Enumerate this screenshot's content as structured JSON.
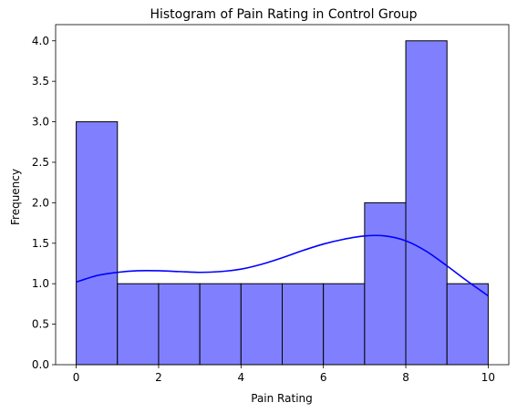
{
  "chart_data": {
    "type": "bar",
    "title": "Histogram of Pain Rating in Control Group",
    "xlabel": "Pain Rating",
    "ylabel": "Frequency",
    "bins": [
      {
        "start": 0,
        "end": 1,
        "count": 3
      },
      {
        "start": 1,
        "end": 2,
        "count": 1
      },
      {
        "start": 2,
        "end": 3,
        "count": 1
      },
      {
        "start": 3,
        "end": 4,
        "count": 1
      },
      {
        "start": 4,
        "end": 5,
        "count": 1
      },
      {
        "start": 5,
        "end": 6,
        "count": 1
      },
      {
        "start": 6,
        "end": 7,
        "count": 1
      },
      {
        "start": 7,
        "end": 8,
        "count": 2
      },
      {
        "start": 8,
        "end": 9,
        "count": 4
      },
      {
        "start": 9,
        "end": 10,
        "count": 1
      }
    ],
    "kde": {
      "x": [
        0,
        0.5,
        1,
        1.5,
        2,
        2.5,
        3,
        3.5,
        4,
        4.5,
        5,
        5.5,
        6,
        6.5,
        7,
        7.5,
        8,
        8.5,
        9,
        9.5,
        10
      ],
      "y": [
        1.02,
        1.1,
        1.14,
        1.16,
        1.16,
        1.15,
        1.14,
        1.15,
        1.18,
        1.24,
        1.32,
        1.41,
        1.49,
        1.55,
        1.59,
        1.59,
        1.53,
        1.4,
        1.22,
        1.03,
        0.85
      ]
    },
    "xticks": [
      0,
      2,
      4,
      6,
      8,
      10
    ],
    "yticks": [
      "0.0",
      "0.5",
      "1.0",
      "1.5",
      "2.0",
      "2.5",
      "3.0",
      "3.5",
      "4.0"
    ],
    "xlim": [
      -0.5,
      10.5
    ],
    "ylim": [
      0,
      4.2
    ],
    "grid": false,
    "colors": {
      "bar_fill": "#8080ff",
      "bar_edge": "#000000",
      "kde_line": "#0000ff"
    }
  }
}
